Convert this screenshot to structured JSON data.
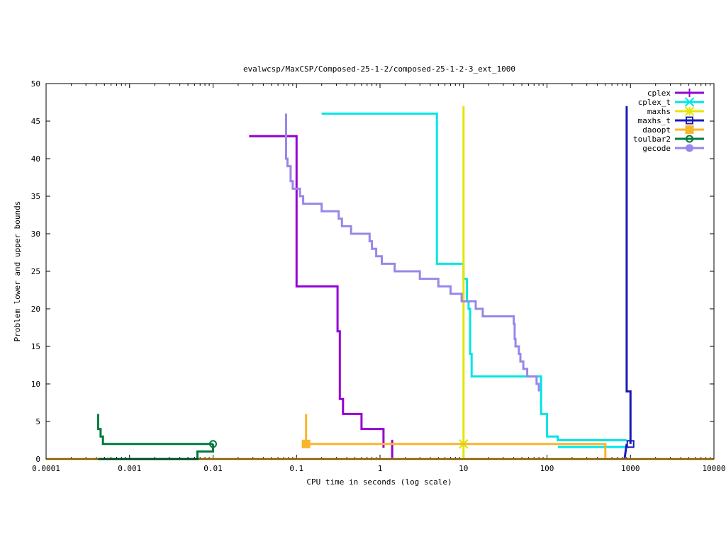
{
  "chart_data": {
    "type": "line",
    "title": "evalwcsp/MaxCSP/Composed-25-1-2/composed-25-1-2-3_ext_1000",
    "xlabel": "CPU time in seconds (log scale)",
    "ylabel": "Problem lower and upper bounds",
    "xscale": "log",
    "xlim": [
      0.0001,
      10000
    ],
    "ylim": [
      0,
      50
    ],
    "x_ticks": [
      0.0001,
      0.001,
      0.01,
      0.1,
      1,
      10,
      100,
      1000,
      10000
    ],
    "x_tick_labels": [
      "0.0001",
      "0.001",
      "0.01",
      "0.1",
      "1",
      "10",
      "100",
      "1000",
      "10000"
    ],
    "y_ticks": [
      0,
      5,
      10,
      15,
      20,
      25,
      30,
      35,
      40,
      45,
      50
    ],
    "y_tick_labels": [
      "0",
      "5",
      "10",
      "15",
      "20",
      "25",
      "30",
      "35",
      "40",
      "45",
      "50"
    ],
    "grid": false,
    "legend_position": "top-right",
    "series": [
      {
        "name": "cplex",
        "color": "#9400d3",
        "marker": "plus",
        "marker_x": 1.4,
        "marker_y": 2,
        "segments": [
          [
            [
              0.027,
              43
            ],
            [
              0.1,
              43
            ],
            [
              0.1,
              23
            ],
            [
              0.31,
              23
            ],
            [
              0.31,
              17
            ],
            [
              0.33,
              17
            ],
            [
              0.33,
              8
            ],
            [
              0.36,
              8
            ],
            [
              0.36,
              6
            ],
            [
              0.6,
              6
            ],
            [
              0.6,
              4
            ],
            [
              1.1,
              4
            ],
            [
              1.1,
              1.5
            ]
          ],
          [
            [
              1.4,
              2.5
            ],
            [
              1.4,
              0
            ]
          ]
        ]
      },
      {
        "name": "cplex_t",
        "color": "#00e5e5",
        "marker": "x-star",
        "marker_x": 10,
        "marker_y": 2,
        "segments": [
          [
            [
              0.2,
              46
            ],
            [
              4.8,
              46
            ],
            [
              4.8,
              26
            ],
            [
              10,
              26
            ],
            [
              10,
              24
            ],
            [
              11,
              24
            ],
            [
              11,
              21
            ],
            [
              11.5,
              21
            ],
            [
              11.5,
              20
            ],
            [
              12,
              20
            ],
            [
              12,
              14
            ],
            [
              12.5,
              14
            ],
            [
              12.5,
              11
            ],
            [
              85,
              11
            ],
            [
              85,
              6
            ],
            [
              100,
              6
            ],
            [
              100,
              3
            ],
            [
              135,
              3
            ],
            [
              135,
              2.5
            ],
            [
              900,
              2.5
            ]
          ],
          [
            [
              135,
              1.6
            ],
            [
              900,
              1.6
            ]
          ]
        ]
      },
      {
        "name": "maxhs",
        "color": "#e5e500",
        "marker": "star",
        "marker_x": 10,
        "marker_y": 2,
        "segments": [
          [
            [
              10,
              47
            ],
            [
              10,
              0
            ]
          ]
        ]
      },
      {
        "name": "maxhs_t",
        "color": "#1a1ab8",
        "marker": "square-open",
        "marker_x": 1000,
        "marker_y": 2,
        "segments": [
          [
            [
              900,
              47
            ],
            [
              900,
              9
            ],
            [
              1000,
              9
            ],
            [
              1000,
              2
            ]
          ],
          [
            [
              850,
              0
            ],
            [
              900,
              2
            ]
          ]
        ]
      },
      {
        "name": "daoopt",
        "color": "#f9b62a",
        "marker": "square-filled",
        "marker_x": 0.13,
        "marker_y": 2,
        "segments": [
          [
            [
              0.13,
              6
            ],
            [
              0.13,
              2
            ],
            [
              500,
              2
            ],
            [
              500,
              0
            ]
          ],
          [
            [
              0.0001,
              0
            ],
            [
              10000,
              0
            ]
          ]
        ]
      },
      {
        "name": "toulbar2",
        "color": "#007a3d",
        "marker": "circle-open",
        "marker_x": 0.01,
        "marker_y": 2,
        "segments": [
          [
            [
              0.00042,
              6
            ],
            [
              0.00042,
              4
            ],
            [
              0.00045,
              4
            ],
            [
              0.00045,
              3
            ],
            [
              0.00048,
              3
            ],
            [
              0.00048,
              2
            ],
            [
              0.01,
              2
            ]
          ],
          [
            [
              0.00042,
              0
            ],
            [
              0.0065,
              0
            ],
            [
              0.0065,
              1
            ],
            [
              0.01,
              1
            ],
            [
              0.01,
              2
            ]
          ]
        ]
      },
      {
        "name": "gecode",
        "color": "#9a86ea",
        "marker": "circle-filled",
        "marker_x": null,
        "marker_y": null,
        "segments": [
          [
            [
              0.075,
              46
            ],
            [
              0.075,
              40
            ],
            [
              0.078,
              40
            ],
            [
              0.078,
              39
            ],
            [
              0.085,
              39
            ],
            [
              0.085,
              37
            ],
            [
              0.09,
              37
            ],
            [
              0.09,
              36
            ],
            [
              0.11,
              36
            ],
            [
              0.11,
              35
            ],
            [
              0.12,
              35
            ],
            [
              0.12,
              34
            ],
            [
              0.2,
              34
            ],
            [
              0.2,
              33
            ],
            [
              0.32,
              33
            ],
            [
              0.32,
              32
            ],
            [
              0.35,
              32
            ],
            [
              0.35,
              31
            ],
            [
              0.45,
              31
            ],
            [
              0.45,
              30
            ],
            [
              0.75,
              30
            ],
            [
              0.75,
              29
            ],
            [
              0.8,
              29
            ],
            [
              0.8,
              28
            ],
            [
              0.9,
              28
            ],
            [
              0.9,
              27
            ],
            [
              1.05,
              27
            ],
            [
              1.05,
              26
            ],
            [
              1.5,
              26
            ],
            [
              1.5,
              25
            ],
            [
              3,
              25
            ],
            [
              3,
              24
            ],
            [
              5,
              24
            ],
            [
              5,
              23
            ],
            [
              7,
              23
            ],
            [
              7,
              22
            ],
            [
              9.5,
              22
            ],
            [
              9.5,
              21
            ],
            [
              14,
              21
            ],
            [
              14,
              20
            ],
            [
              17,
              20
            ],
            [
              17,
              19
            ],
            [
              40,
              19
            ],
            [
              40,
              18
            ],
            [
              41,
              18
            ],
            [
              41,
              16
            ],
            [
              42,
              16
            ],
            [
              42,
              15
            ],
            [
              46,
              15
            ],
            [
              46,
              14
            ],
            [
              48,
              14
            ],
            [
              48,
              13
            ],
            [
              52,
              13
            ],
            [
              52,
              12
            ],
            [
              58,
              12
            ],
            [
              58,
              11
            ],
            [
              75,
              11
            ],
            [
              75,
              10
            ],
            [
              80,
              10
            ],
            [
              80,
              9
            ]
          ]
        ]
      }
    ]
  }
}
